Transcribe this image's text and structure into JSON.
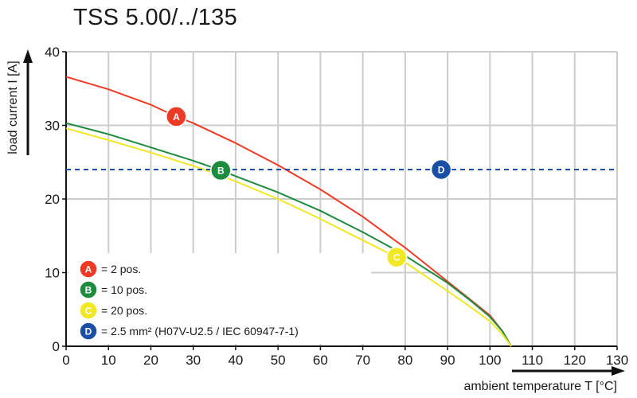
{
  "title": "TSS 5.00/../135",
  "chart_data": {
    "type": "line",
    "title": "TSS 5.00/../135",
    "xlabel": "ambient temperature T [°C]",
    "ylabel": "load current I [A]",
    "xlim": [
      0,
      130
    ],
    "ylim": [
      0,
      40
    ],
    "x_ticks": [
      0,
      10,
      20,
      30,
      40,
      50,
      60,
      70,
      80,
      90,
      100,
      110,
      120,
      130
    ],
    "y_ticks": [
      0,
      10,
      20,
      30,
      40
    ],
    "grid": true,
    "legend_position": "bottom-left",
    "series": [
      {
        "id": "A",
        "color": "#ee3a24",
        "dashed": false,
        "x": [
          0,
          10,
          20,
          26,
          30,
          40,
          50,
          60,
          70,
          78,
          80,
          90,
          95,
          100,
          103,
          105
        ],
        "y": [
          36.6,
          34.9,
          32.8,
          31.2,
          30.3,
          27.6,
          24.6,
          21.3,
          17.6,
          14.2,
          13.4,
          8.8,
          6.5,
          4.2,
          2.0,
          0
        ]
      },
      {
        "id": "B",
        "color": "#1e8b3e",
        "dashed": false,
        "x": [
          0,
          10,
          20,
          30,
          36.5,
          40,
          50,
          60,
          70,
          78,
          80,
          90,
          95,
          100,
          103,
          105
        ],
        "y": [
          30.3,
          28.8,
          27.0,
          25.2,
          23.9,
          23.1,
          20.9,
          18.4,
          15.5,
          13.0,
          12.3,
          8.6,
          6.4,
          4.0,
          2.0,
          0
        ]
      },
      {
        "id": "C",
        "color": "#f0e824",
        "dashed": false,
        "x": [
          0,
          10,
          20,
          30,
          36.5,
          40,
          50,
          60,
          70,
          78,
          80,
          90,
          95,
          100,
          103,
          105
        ],
        "y": [
          29.6,
          28.0,
          26.3,
          24.5,
          23.2,
          22.4,
          20.0,
          17.3,
          14.4,
          12.1,
          11.4,
          7.5,
          5.5,
          3.4,
          1.6,
          0
        ]
      },
      {
        "id": "D",
        "color": "#1b4fa5",
        "dashed": true,
        "x": [
          0,
          130
        ],
        "y": [
          24,
          24
        ]
      }
    ],
    "markers": [
      {
        "label": "A",
        "x": 26,
        "y": 31.2,
        "color": "#ee3a24"
      },
      {
        "label": "B",
        "x": 36.5,
        "y": 23.9,
        "color": "#1e8b3e"
      },
      {
        "label": "C",
        "x": 78,
        "y": 12.1,
        "color": "#f0e824"
      },
      {
        "label": "D",
        "x": 88.5,
        "y": 24,
        "color": "#1b4fa5"
      }
    ],
    "legend": [
      {
        "label": "A",
        "text": "= 2 pos.",
        "color": "#ee3a24"
      },
      {
        "label": "B",
        "text": "= 10 pos.",
        "color": "#1e8b3e"
      },
      {
        "label": "C",
        "text": "= 20 pos.",
        "color": "#f0e824"
      },
      {
        "label": "D",
        "text": "= 2.5 mm² (H07V-U2.5 / IEC 60947-7-1)",
        "color": "#1b4fa5"
      }
    ]
  }
}
